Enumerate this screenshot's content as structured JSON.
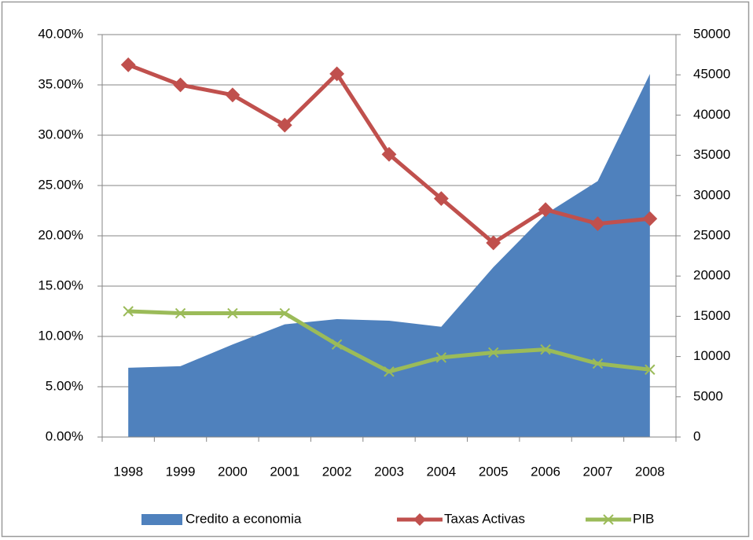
{
  "chart_data": {
    "type": "line",
    "categories": [
      "1998",
      "1999",
      "2000",
      "2001",
      "2002",
      "2003",
      "2004",
      "2005",
      "2006",
      "2007",
      "2008"
    ],
    "series": [
      {
        "name": "Credito a economia",
        "type": "area",
        "axis": "y2",
        "color": "#4f81bd",
        "values": [
          8600,
          8800,
          11500,
          14000,
          14650,
          14450,
          13700,
          21100,
          27700,
          31800,
          45100
        ]
      },
      {
        "name": "Taxas Activas",
        "type": "line",
        "marker": "diamond",
        "color": "#c0504d",
        "values": [
          37.0,
          35.0,
          34.0,
          31.0,
          36.1,
          28.1,
          23.7,
          19.3,
          22.6,
          21.2,
          21.7
        ]
      },
      {
        "name": "PIB",
        "type": "line",
        "marker": "x",
        "color": "#9bbb59",
        "values": [
          12.5,
          12.3,
          12.3,
          12.3,
          9.2,
          6.5,
          7.9,
          8.4,
          8.7,
          7.3,
          6.7
        ]
      }
    ],
    "ylim": [
      0,
      40
    ],
    "yticks": [
      {
        "value": 0,
        "label": "0.00%"
      },
      {
        "value": 5,
        "label": "5.00%"
      },
      {
        "value": 10,
        "label": "10.00%"
      },
      {
        "value": 15,
        "label": "15.00%"
      },
      {
        "value": 20,
        "label": "20.00%"
      },
      {
        "value": 25,
        "label": "25.00%"
      },
      {
        "value": 30,
        "label": "30.00%"
      },
      {
        "value": 35,
        "label": "35.00%"
      },
      {
        "value": 40,
        "label": "40.00%"
      }
    ],
    "y2lim": [
      0,
      50000
    ],
    "y2ticks": [
      0,
      5000,
      10000,
      15000,
      20000,
      25000,
      30000,
      35000,
      40000,
      45000,
      50000
    ],
    "grid": true,
    "legend": "bottom"
  }
}
